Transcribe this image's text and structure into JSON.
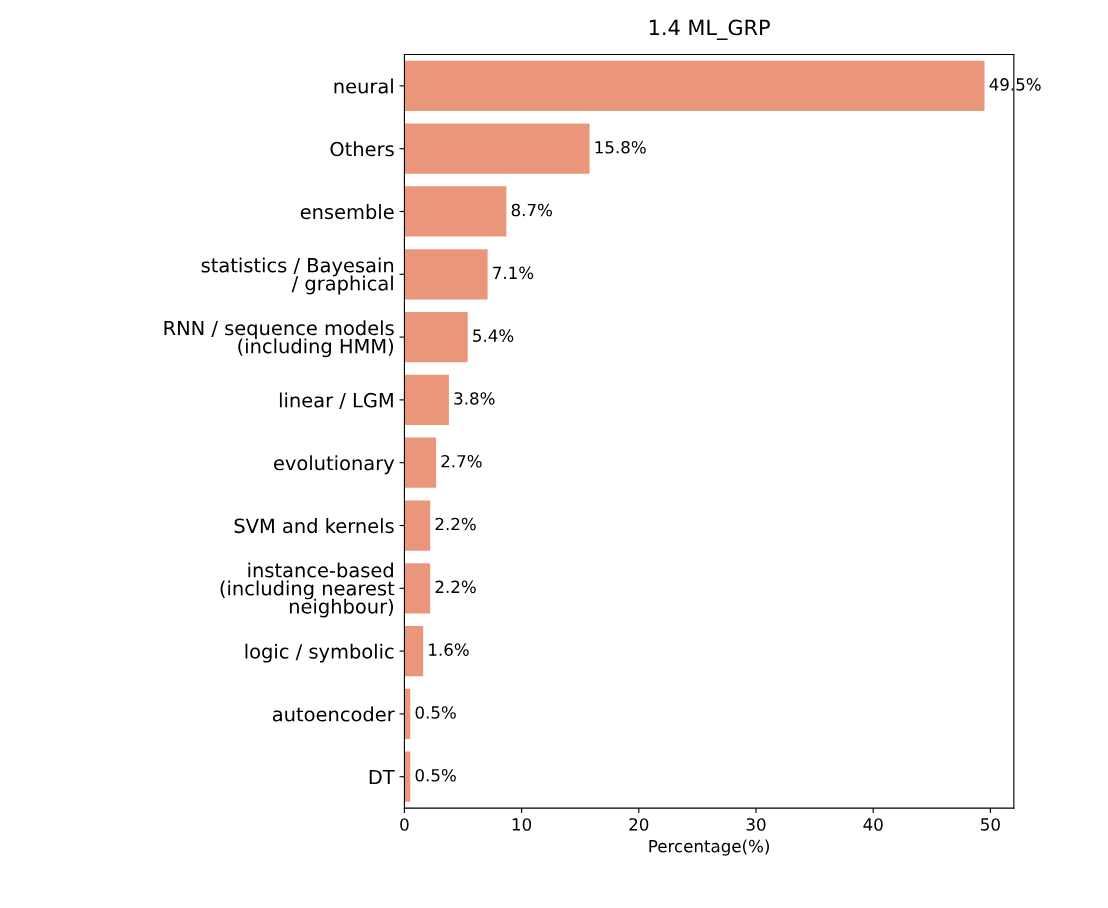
{
  "chart_data": {
    "type": "bar",
    "orientation": "horizontal",
    "title": "1.4 ML_GRP",
    "xlabel": "Percentage(%)",
    "categories": [
      "neural",
      "Others",
      "ensemble",
      "statistics / Bayesain\n/ graphical",
      "RNN / sequence models\n(including HMM)",
      "linear / LGM",
      "evolutionary",
      "SVM and kernels",
      "instance-based\n(including nearest\nneighbour)",
      "logic / symbolic",
      "autoencoder",
      "DT"
    ],
    "values": [
      49.5,
      15.8,
      8.7,
      7.1,
      5.4,
      3.8,
      2.7,
      2.2,
      2.2,
      1.6,
      0.5,
      0.5
    ],
    "value_labels": [
      "49.5%",
      "15.8%",
      "8.7%",
      "7.1%",
      "5.4%",
      "3.8%",
      "2.7%",
      "2.2%",
      "2.2%",
      "1.6%",
      "0.5%",
      "0.5%"
    ],
    "color": "#e9967a",
    "xlim": [
      0,
      52
    ],
    "xticks": [
      0,
      10,
      20,
      30,
      40,
      50
    ],
    "grid": false
  }
}
